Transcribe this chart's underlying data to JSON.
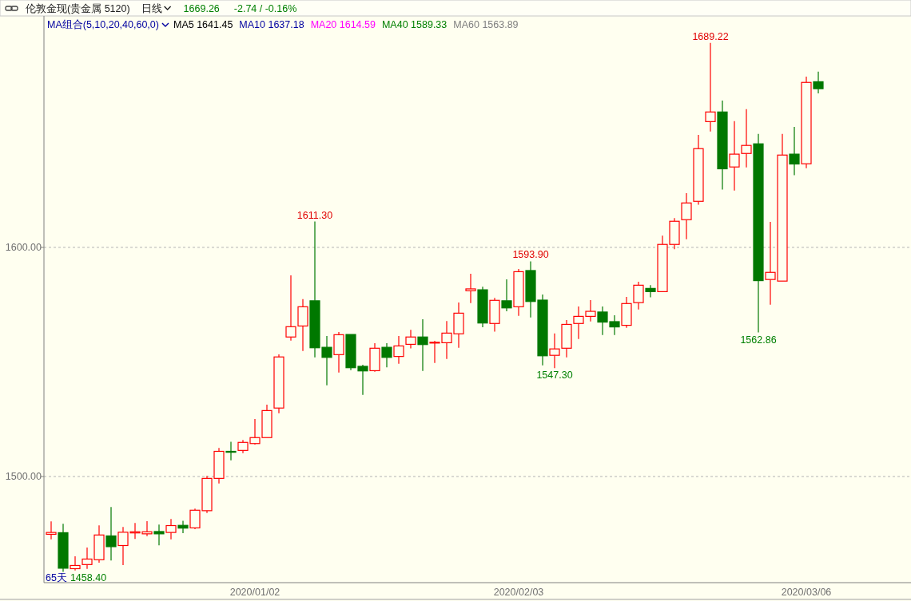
{
  "chart_data": {
    "type": "candlestick",
    "title": "伦敦金现(贵金属 5120)",
    "subtitle": "日线",
    "annotations": [
      "1669.26",
      "-2.74 / -0.16%",
      "MA组合(5,10,20,40,60,0)",
      "MA5 1641.45",
      "MA10 1637.18",
      "MA20 1614.59",
      "MA40 1589.33",
      "MA60 1563.89",
      "65天",
      {
        "text": "1611.30",
        "y": 1611.3
      },
      {
        "text": "1593.90",
        "y": 1593.9
      },
      {
        "text": "1689.22",
        "y": 1689.22
      },
      {
        "text": "1547.30",
        "y": 1547.3
      },
      {
        "text": "1562.86",
        "y": 1562.86
      },
      "1458.40"
    ],
    "categories": [
      null,
      null,
      null,
      null,
      null,
      null,
      null,
      null,
      null,
      null,
      null,
      null,
      null,
      null,
      null,
      null,
      null,
      "2020/01/02",
      null,
      null,
      null,
      null,
      null,
      null,
      null,
      null,
      null,
      null,
      null,
      null,
      null,
      null,
      null,
      null,
      null,
      null,
      null,
      null,
      null,
      "2020/02/03",
      null,
      null,
      null,
      null,
      null,
      null,
      null,
      null,
      null,
      null,
      null,
      null,
      null,
      null,
      null,
      null,
      null,
      null,
      null,
      null,
      null,
      null,
      null,
      "2020/03/06",
      null
    ],
    "ohlc": [
      [
        1474.8,
        1480.4,
        1472.6,
        1475.6
      ],
      [
        1475.5,
        1479.4,
        1458.4,
        1460.0
      ],
      [
        1459.8,
        1465.2,
        1459.0,
        1461.2
      ],
      [
        1461.6,
        1469.0,
        1459.7,
        1464.0
      ],
      [
        1463.7,
        1478.7,
        1462.4,
        1474.5
      ],
      [
        1474.1,
        1486.7,
        1463.4,
        1469.4
      ],
      [
        1469.9,
        1478.0,
        1461.4,
        1475.7
      ],
      [
        1475.4,
        1479.7,
        1472.8,
        1475.9
      ],
      [
        1475.0,
        1480.5,
        1474.0,
        1475.9
      ],
      [
        1476.0,
        1479.0,
        1470.0,
        1475.0
      ],
      [
        1475.6,
        1481.5,
        1472.6,
        1478.6
      ],
      [
        1478.7,
        1480.7,
        1475.3,
        1477.5
      ],
      [
        1477.6,
        1486.0,
        1477.0,
        1485.3
      ],
      [
        1485.1,
        1500.3,
        1484.1,
        1499.2
      ],
      [
        1499.2,
        1512.5,
        1497.0,
        1511.0
      ],
      [
        1511.0,
        1515.2,
        1507.1,
        1510.6
      ],
      [
        1511.4,
        1516.0,
        1510.2,
        1514.9
      ],
      [
        1514.4,
        1525.1,
        1514.0,
        1517.0
      ],
      [
        1517.0,
        1531.4,
        1517.0,
        1528.8
      ],
      [
        1529.9,
        1553.3,
        1527.6,
        1552.2
      ],
      [
        1560.9,
        1587.8,
        1559.3,
        1565.4
      ],
      [
        1565.7,
        1577.4,
        1554.8,
        1574.1
      ],
      [
        1576.7,
        1611.3,
        1552.0,
        1556.2
      ],
      [
        1556.4,
        1561.3,
        1539.8,
        1552.0
      ],
      [
        1553.2,
        1563.1,
        1545.4,
        1561.9
      ],
      [
        1562.0,
        1562.0,
        1546.4,
        1547.5
      ],
      [
        1548.1,
        1548.8,
        1535.6,
        1546.1
      ],
      [
        1546.2,
        1558.2,
        1545.7,
        1556.0
      ],
      [
        1556.4,
        1558.2,
        1547.7,
        1552.0
      ],
      [
        1552.4,
        1561.3,
        1549.2,
        1557.0
      ],
      [
        1557.7,
        1564.0,
        1555.9,
        1560.9
      ],
      [
        1560.9,
        1568.6,
        1546.1,
        1557.6
      ],
      [
        1558.5,
        1559.2,
        1549.6,
        1558.6
      ],
      [
        1558.4,
        1567.9,
        1551.3,
        1562.6
      ],
      [
        1562.3,
        1576.0,
        1556.2,
        1571.3
      ],
      [
        1581.1,
        1588.5,
        1575.7,
        1581.9
      ],
      [
        1581.5,
        1582.8,
        1565.2,
        1567.0
      ],
      [
        1566.8,
        1578.0,
        1563.2,
        1576.9
      ],
      [
        1576.7,
        1586.1,
        1572.1,
        1573.6
      ],
      [
        1574.1,
        1590.6,
        1570.1,
        1589.4
      ],
      [
        1589.9,
        1593.9,
        1569.4,
        1576.4
      ],
      [
        1577.0,
        1579.4,
        1548.5,
        1552.7
      ],
      [
        1552.9,
        1562.5,
        1547.3,
        1555.7
      ],
      [
        1556.0,
        1568.3,
        1552.0,
        1566.4
      ],
      [
        1566.8,
        1574.2,
        1560.0,
        1569.9
      ],
      [
        1569.9,
        1577.0,
        1567.7,
        1572.1
      ],
      [
        1571.8,
        1574.2,
        1561.8,
        1567.4
      ],
      [
        1567.6,
        1570.4,
        1561.8,
        1565.3
      ],
      [
        1566.0,
        1578.4,
        1564.9,
        1575.5
      ],
      [
        1575.9,
        1585.0,
        1572.9,
        1583.5
      ],
      [
        1582.1,
        1583.5,
        1578.2,
        1580.7
      ],
      [
        1580.7,
        1605.1,
        1580.7,
        1601.3
      ],
      [
        1601.3,
        1612.8,
        1599.2,
        1611.4
      ],
      [
        1612.1,
        1623.7,
        1603.6,
        1619.4
      ],
      [
        1620.1,
        1649.1,
        1618.6,
        1643.1
      ],
      [
        1654.9,
        1689.22,
        1650.6,
        1659.1
      ],
      [
        1659.1,
        1664.1,
        1625.2,
        1634.3
      ],
      [
        1635.1,
        1655.1,
        1624.8,
        1640.7
      ],
      [
        1641.0,
        1660.3,
        1634.9,
        1644.5
      ],
      [
        1645.2,
        1649.5,
        1562.86,
        1585.5
      ],
      [
        1586.0,
        1611.1,
        1575.0,
        1589.1
      ],
      [
        1585.3,
        1649.5,
        1585.3,
        1640.3
      ],
      [
        1640.7,
        1652.6,
        1631.5,
        1636.4
      ],
      [
        1636.5,
        1674.5,
        1634.6,
        1672.0
      ],
      [
        1672.3,
        1676.7,
        1667.2,
        1669.26
      ]
    ],
    "colors": [
      "#ff0000",
      "#007800",
      "#ff0000",
      "#ff0000",
      "#ff0000",
      "#007800",
      "#ff0000",
      "#ff0000",
      "#ff0000",
      "#007800",
      "#ff0000",
      "#007800",
      "#ff0000",
      "#ff0000",
      "#ff0000",
      "#007800",
      "#ff0000",
      "#ff0000",
      "#ff0000",
      "#ff0000",
      "#ff0000",
      "#ff0000",
      "#007800",
      "#007800",
      "#ff0000",
      "#007800",
      "#007800",
      "#ff0000",
      "#007800",
      "#ff0000",
      "#ff0000",
      "#007800",
      "#ff0000",
      "#ff0000",
      "#ff0000",
      "#ff0000",
      "#007800",
      "#ff0000",
      "#007800",
      "#ff0000",
      "#007800",
      "#007800",
      "#ff0000",
      "#ff0000",
      "#ff0000",
      "#ff0000",
      "#007800",
      "#007800",
      "#ff0000",
      "#ff0000",
      "#007800",
      "#ff0000",
      "#ff0000",
      "#ff0000",
      "#ff0000",
      "#ff0000",
      "#007800",
      "#ff0000",
      "#ff0000",
      "#007800",
      "#ff0000",
      "#ff0000",
      "#007800",
      "#ff0000",
      "#007800"
    ],
    "ylim": [
      1453.7,
      1701.0
    ],
    "yticks": [
      {
        "value": 1500,
        "label": "1500.00"
      },
      {
        "value": 1600,
        "label": "1600.00"
      }
    ],
    "grid": "y"
  }
}
